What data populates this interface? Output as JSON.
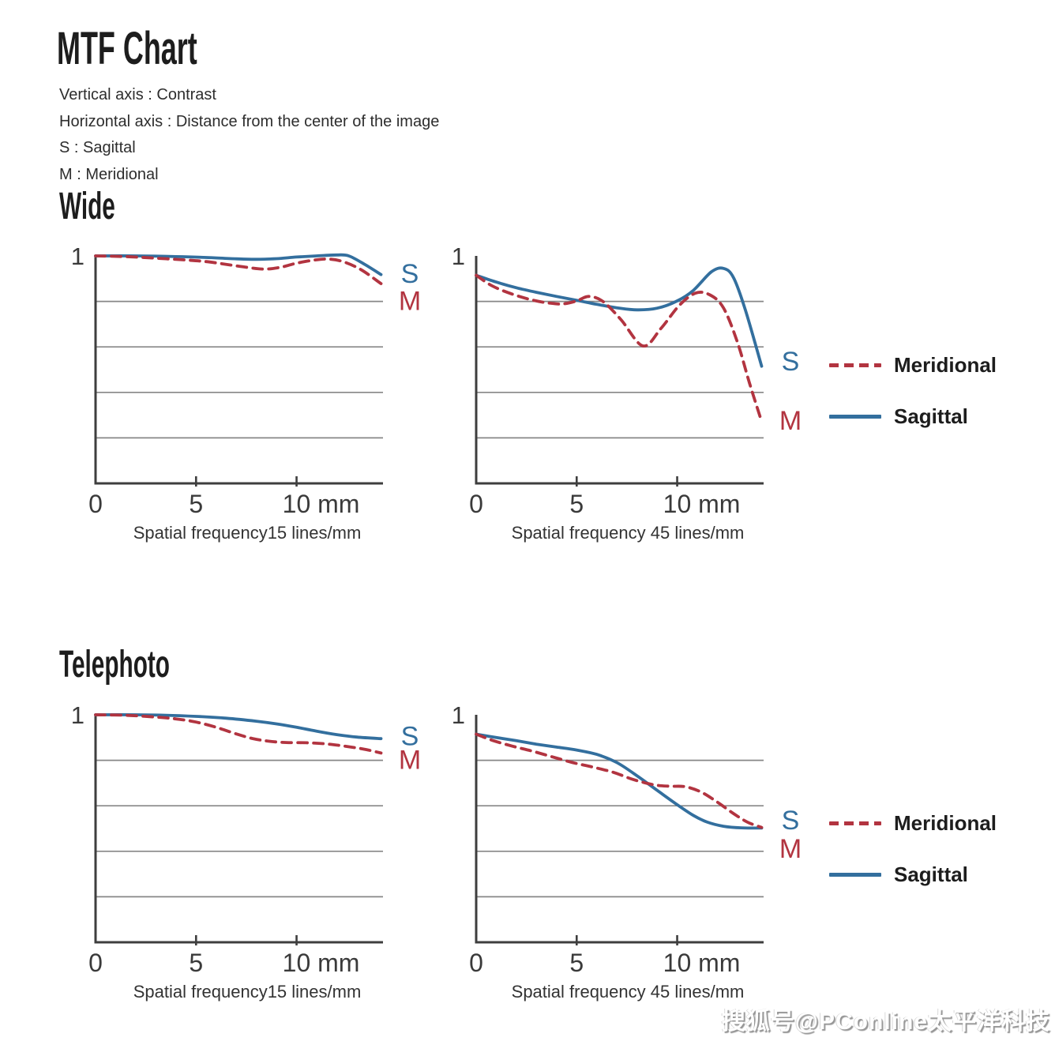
{
  "page": {
    "title": "MTF Chart",
    "description_lines": [
      "Vertical axis : Contrast",
      "Horizontal axis : Distance from the center of the image",
      "S : Sagittal",
      "M : Meridional"
    ],
    "watermark": "搜狐号@PConline太平洋科技"
  },
  "sections": [
    {
      "title": "Wide"
    },
    {
      "title": "Telephoto"
    }
  ],
  "legend": {
    "meridional_label": "Meridional",
    "sagittal_label": "Sagittal"
  },
  "colors": {
    "sagittal": "#336f9e",
    "meridional": "#b23440",
    "axis": "#3e3e3e",
    "gridline": "#878787",
    "tick_text": "#3a3a3a",
    "caption_text": "#333333"
  },
  "chart_data": [
    {
      "type": "line",
      "section": "Wide",
      "spatial_frequency_lines_per_mm": 15,
      "caption": "Spatial frequency15 lines/mm",
      "y_top_label": "1",
      "ylim": [
        0,
        1
      ],
      "gridlines_y": [
        0.8,
        0.6,
        0.4,
        0.2
      ],
      "x_tick_values": [
        0,
        5,
        10
      ],
      "x_tick_labels": [
        "0",
        "5",
        "10 mm"
      ],
      "x_max": 14.3,
      "curve_labels": {
        "s": "S",
        "m": "M",
        "s_y": 0.92,
        "m_y": 0.8
      },
      "series": [
        {
          "name": "Sagittal",
          "style": "solid",
          "color_key": "sagittal",
          "points": [
            [
              0,
              1.0
            ],
            [
              2,
              1.0
            ],
            [
              4,
              0.997
            ],
            [
              5.5,
              0.993
            ],
            [
              7,
              0.987
            ],
            [
              8,
              0.985
            ],
            [
              9,
              0.988
            ],
            [
              10,
              0.995
            ],
            [
              11,
              1.0
            ],
            [
              12,
              1.004
            ],
            [
              12.6,
              1.0
            ],
            [
              13.4,
              0.962
            ],
            [
              14.2,
              0.918
            ]
          ]
        },
        {
          "name": "Meridional",
          "style": "dashed",
          "color_key": "meridional",
          "points": [
            [
              0,
              1.0
            ],
            [
              1.5,
              0.997
            ],
            [
              3,
              0.99
            ],
            [
              4.5,
              0.982
            ],
            [
              5.5,
              0.975
            ],
            [
              6.5,
              0.963
            ],
            [
              7.5,
              0.95
            ],
            [
              8.4,
              0.942
            ],
            [
              9.2,
              0.95
            ],
            [
              10,
              0.968
            ],
            [
              10.9,
              0.982
            ],
            [
              11.6,
              0.986
            ],
            [
              12.3,
              0.975
            ],
            [
              13.2,
              0.94
            ],
            [
              14.2,
              0.878
            ]
          ]
        }
      ]
    },
    {
      "type": "line",
      "section": "Wide",
      "spatial_frequency_lines_per_mm": 45,
      "caption": "Spatial frequency 45 lines/mm",
      "y_top_label": "1",
      "ylim": [
        0,
        1
      ],
      "gridlines_y": [
        0.8,
        0.6,
        0.4,
        0.2
      ],
      "x_tick_values": [
        0,
        5,
        10
      ],
      "x_tick_labels": [
        "0",
        "5",
        "10 mm"
      ],
      "x_max": 14.3,
      "curve_labels": {
        "s": "S",
        "m": "M",
        "s_y": 0.535,
        "m_y": 0.275
      },
      "series": [
        {
          "name": "Sagittal",
          "style": "solid",
          "color_key": "sagittal",
          "points": [
            [
              0,
              0.915
            ],
            [
              1,
              0.885
            ],
            [
              2,
              0.86
            ],
            [
              3,
              0.84
            ],
            [
              4,
              0.822
            ],
            [
              5,
              0.805
            ],
            [
              6,
              0.787
            ],
            [
              7,
              0.772
            ],
            [
              8,
              0.763
            ],
            [
              9,
              0.77
            ],
            [
              10,
              0.802
            ],
            [
              10.8,
              0.848
            ],
            [
              11.7,
              0.93
            ],
            [
              12.3,
              0.945
            ],
            [
              12.8,
              0.905
            ],
            [
              13.4,
              0.76
            ],
            [
              14.2,
              0.515
            ]
          ]
        },
        {
          "name": "Meridional",
          "style": "dashed",
          "color_key": "meridional",
          "points": [
            [
              0,
              0.915
            ],
            [
              0.8,
              0.868
            ],
            [
              1.8,
              0.832
            ],
            [
              2.8,
              0.806
            ],
            [
              3.6,
              0.793
            ],
            [
              4.3,
              0.789
            ],
            [
              5,
              0.802
            ],
            [
              5.6,
              0.822
            ],
            [
              6.3,
              0.8
            ],
            [
              7.2,
              0.72
            ],
            [
              8.3,
              0.604
            ],
            [
              9.2,
              0.682
            ],
            [
              10.1,
              0.782
            ],
            [
              10.9,
              0.836
            ],
            [
              11.6,
              0.83
            ],
            [
              12.3,
              0.772
            ],
            [
              13,
              0.62
            ],
            [
              13.6,
              0.44
            ],
            [
              14.2,
              0.272
            ]
          ]
        }
      ]
    },
    {
      "type": "line",
      "section": "Telephoto",
      "spatial_frequency_lines_per_mm": 15,
      "caption": "Spatial frequency15 lines/mm",
      "y_top_label": "1",
      "ylim": [
        0,
        1
      ],
      "gridlines_y": [
        0.8,
        0.6,
        0.4,
        0.2
      ],
      "x_tick_values": [
        0,
        5,
        10
      ],
      "x_tick_labels": [
        "0",
        "5",
        "10 mm"
      ],
      "x_max": 14.3,
      "curve_labels": {
        "s": "S",
        "m": "M",
        "s_y": 0.905,
        "m_y": 0.8
      },
      "series": [
        {
          "name": "Sagittal",
          "style": "solid",
          "color_key": "sagittal",
          "points": [
            [
              0,
              1.0
            ],
            [
              2,
              1.0
            ],
            [
              3.5,
              0.998
            ],
            [
              5,
              0.993
            ],
            [
              6.5,
              0.985
            ],
            [
              8,
              0.972
            ],
            [
              9,
              0.96
            ],
            [
              10,
              0.945
            ],
            [
              11,
              0.928
            ],
            [
              12,
              0.913
            ],
            [
              13,
              0.902
            ],
            [
              14.2,
              0.895
            ]
          ]
        },
        {
          "name": "Meridional",
          "style": "dashed",
          "color_key": "meridional",
          "points": [
            [
              0,
              1.0
            ],
            [
              1.5,
              0.998
            ],
            [
              3,
              0.99
            ],
            [
              4,
              0.982
            ],
            [
              5,
              0.968
            ],
            [
              6,
              0.945
            ],
            [
              7,
              0.916
            ],
            [
              7.8,
              0.896
            ],
            [
              8.6,
              0.884
            ],
            [
              9.5,
              0.878
            ],
            [
              10.5,
              0.877
            ],
            [
              11.5,
              0.872
            ],
            [
              12.4,
              0.862
            ],
            [
              13.3,
              0.85
            ],
            [
              14.2,
              0.832
            ]
          ]
        }
      ]
    },
    {
      "type": "line",
      "section": "Telephoto",
      "spatial_frequency_lines_per_mm": 45,
      "caption": "Spatial frequency 45 lines/mm",
      "y_top_label": "1",
      "ylim": [
        0,
        1
      ],
      "gridlines_y": [
        0.8,
        0.6,
        0.4,
        0.2
      ],
      "x_tick_values": [
        0,
        5,
        10
      ],
      "x_tick_labels": [
        "0",
        "5",
        "10 mm"
      ],
      "x_max": 14.3,
      "curve_labels": {
        "s": "S",
        "m": "M",
        "s_y": 0.535,
        "m_y": 0.41
      },
      "series": [
        {
          "name": "Sagittal",
          "style": "solid",
          "color_key": "sagittal",
          "points": [
            [
              0,
              0.915
            ],
            [
              1,
              0.9
            ],
            [
              2,
              0.886
            ],
            [
              3,
              0.871
            ],
            [
              4,
              0.858
            ],
            [
              5,
              0.845
            ],
            [
              6,
              0.826
            ],
            [
              7,
              0.79
            ],
            [
              8,
              0.732
            ],
            [
              9,
              0.668
            ],
            [
              10,
              0.605
            ],
            [
              10.8,
              0.558
            ],
            [
              11.5,
              0.528
            ],
            [
              12.3,
              0.51
            ],
            [
              13.2,
              0.503
            ],
            [
              14.2,
              0.502
            ]
          ]
        },
        {
          "name": "Meridional",
          "style": "dashed",
          "color_key": "meridional",
          "points": [
            [
              0,
              0.915
            ],
            [
              0.8,
              0.888
            ],
            [
              1.8,
              0.862
            ],
            [
              2.8,
              0.84
            ],
            [
              3.8,
              0.815
            ],
            [
              4.8,
              0.79
            ],
            [
              5.8,
              0.77
            ],
            [
              6.8,
              0.748
            ],
            [
              7.8,
              0.716
            ],
            [
              8.8,
              0.693
            ],
            [
              9.6,
              0.686
            ],
            [
              10.4,
              0.684
            ],
            [
              11.2,
              0.66
            ],
            [
              12,
              0.616
            ],
            [
              12.8,
              0.566
            ],
            [
              13.5,
              0.528
            ],
            [
              14.2,
              0.505
            ]
          ]
        }
      ]
    }
  ]
}
